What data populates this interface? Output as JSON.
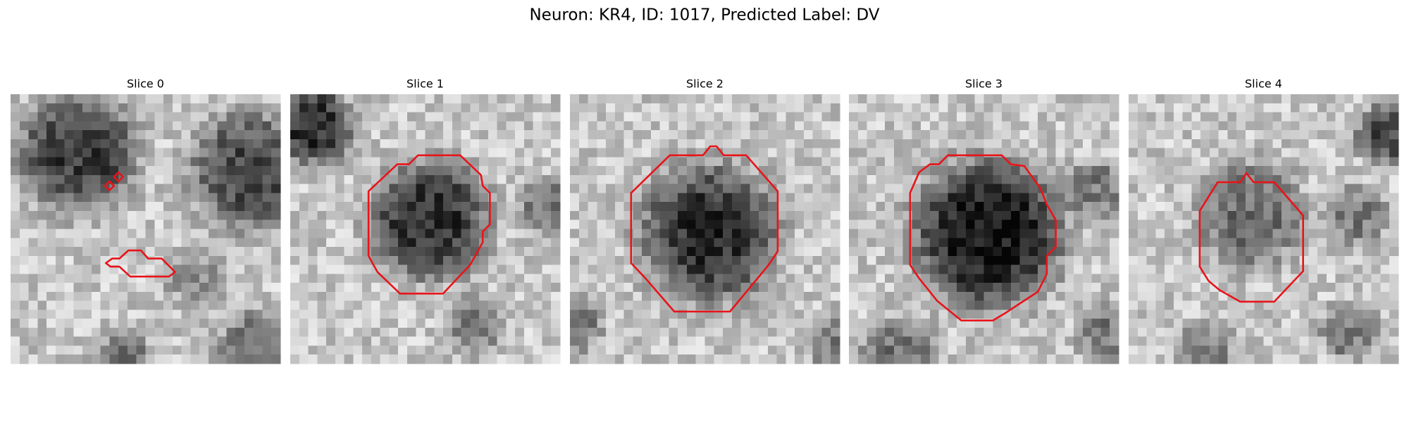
{
  "header": {
    "title": "Neuron: KR4, ID: 1017, Predicted Label: DV"
  },
  "panels": [
    {
      "title": "Slice 0"
    },
    {
      "title": "Slice 1"
    },
    {
      "title": "Slice 2"
    },
    {
      "title": "Slice 3"
    },
    {
      "title": "Slice 4"
    }
  ]
}
